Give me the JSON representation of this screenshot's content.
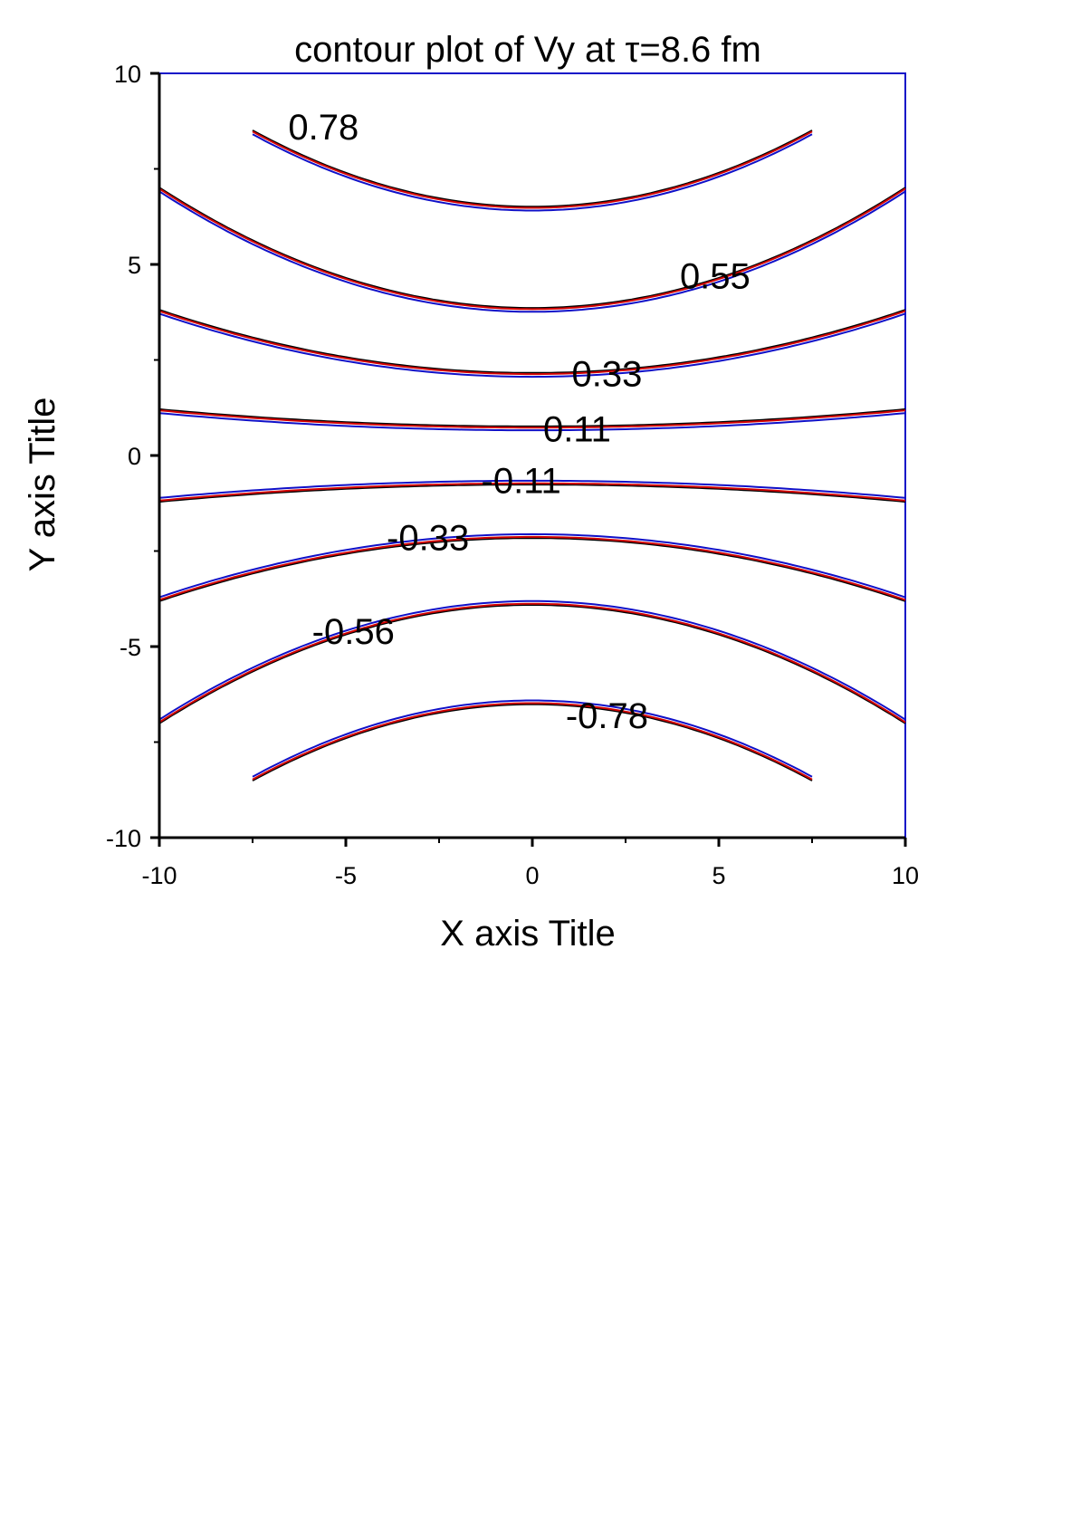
{
  "chart_data": {
    "type": "contour",
    "title": "contour plot of Vy at τ=8.6 fm",
    "xlabel": "X axis Title",
    "ylabel": "Y axis Title",
    "xlim": [
      -10,
      10
    ],
    "ylim": [
      -10,
      10
    ],
    "x_ticks": [
      "-10",
      "-5",
      "0",
      "5",
      "10"
    ],
    "y_ticks": [
      "-10",
      "-5",
      "0",
      "5",
      "10"
    ],
    "series_colors": [
      "#000000",
      "#d40000",
      "#1010c8"
    ],
    "contours": [
      {
        "level": 0.78,
        "label": "0.78",
        "label_at": [
          -5.6,
          8.6
        ],
        "y_at_center": 6.45,
        "y_at_edge": 10.0,
        "x_at_edge": 7.5
      },
      {
        "level": 0.55,
        "label": "0.55",
        "label_at": [
          4.9,
          4.7
        ],
        "y_at_center": 3.8,
        "y_at_edge": 6.95
      },
      {
        "level": 0.33,
        "label": "0.33",
        "label_at": [
          2.0,
          2.15
        ],
        "y_at_center": 2.1,
        "y_at_edge": 3.75
      },
      {
        "level": 0.11,
        "label": "0.11",
        "label_at": [
          1.2,
          0.7
        ],
        "y_at_center": 0.7,
        "y_at_edge": 1.15
      },
      {
        "level": -0.11,
        "label": "-0.11",
        "label_at": [
          -0.3,
          -0.65
        ],
        "y_at_center": -0.7,
        "y_at_edge": -1.15
      },
      {
        "level": -0.33,
        "label": "-0.33",
        "label_at": [
          -2.8,
          -2.15
        ],
        "y_at_center": -2.1,
        "y_at_edge": -3.75
      },
      {
        "level": -0.56,
        "label": "-0.56",
        "label_at": [
          -4.8,
          -4.6
        ],
        "y_at_center": -3.85,
        "y_at_edge": -6.95
      },
      {
        "level": -0.78,
        "label": "-0.78",
        "label_at": [
          2.0,
          -6.8
        ],
        "y_at_center": -6.45,
        "y_at_edge": -10.0,
        "x_at_edge": 7.5
      }
    ]
  }
}
